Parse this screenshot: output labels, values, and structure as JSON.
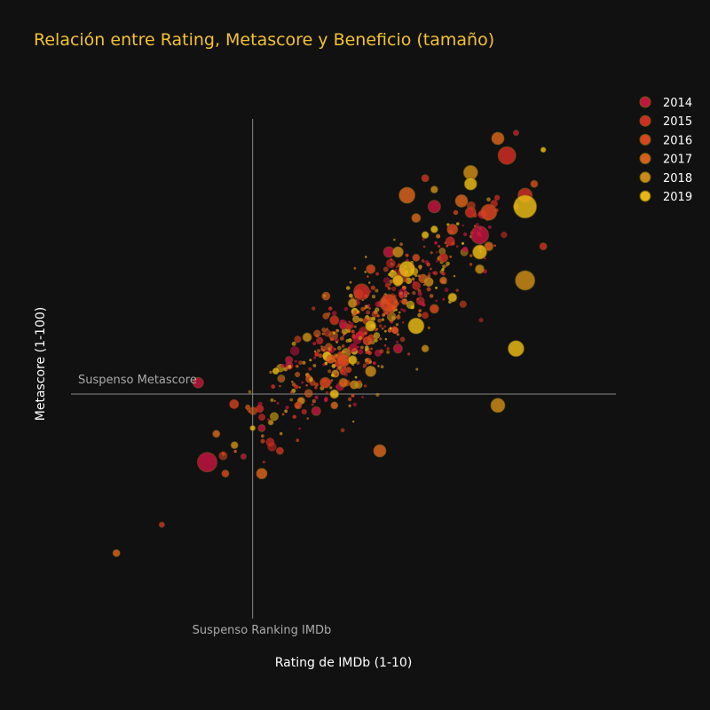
{
  "chart_data": {
    "type": "scatter",
    "title": "Relación entre Rating, Metascore y Beneficio (tamaño)",
    "xlabel": "Rating de IMDb (1-10)",
    "ylabel": "Metascore (1-100)",
    "xlim": [
      3.0,
      9.0
    ],
    "ylim": [
      10,
      100
    ],
    "grid": false,
    "legend_position": "top-right",
    "reference_lines": [
      {
        "axis": "x",
        "value": 5,
        "label": "Suspenso Ranking IMDb"
      },
      {
        "axis": "y",
        "value": 50,
        "label": "Suspenso Metascore"
      }
    ],
    "colors": {
      "background": "#111111",
      "title": "#f2c230",
      "axis_text": "#ffffff",
      "reference_line": "#888888",
      "reference_text": "#aaaaaa"
    },
    "series": [
      {
        "name": "2014",
        "color": "#c2143f",
        "points": [
          [
            4.4,
            52,
            6
          ],
          [
            7.5,
            78,
            10
          ],
          [
            4.5,
            38,
            11
          ],
          [
            7.0,
            83,
            7
          ],
          [
            6.6,
            58,
            5
          ],
          [
            5.4,
            56,
            4
          ],
          [
            5.1,
            44,
            4
          ],
          [
            6.5,
            75,
            6
          ],
          [
            7.9,
            96,
            3
          ],
          [
            6.0,
            62,
            4
          ],
          [
            5.7,
            47,
            5
          ],
          [
            4.9,
            39,
            3
          ]
        ]
      },
      {
        "name": "2015",
        "color": "#cf2c22",
        "points": [
          [
            7.8,
            92,
            10
          ],
          [
            8.0,
            85,
            8
          ],
          [
            6.2,
            68,
            9
          ],
          [
            5.9,
            63,
            5
          ],
          [
            7.4,
            82,
            6
          ],
          [
            6.6,
            70,
            5
          ],
          [
            5.3,
            40,
            4
          ],
          [
            6.9,
            88,
            4
          ],
          [
            4.0,
            27,
            3
          ],
          [
            8.2,
            76,
            4
          ],
          [
            6.0,
            54,
            4
          ],
          [
            7.1,
            74,
            5
          ]
        ]
      },
      {
        "name": "2016",
        "color": "#d9451e",
        "points": [
          [
            6.5,
            66,
            10
          ],
          [
            7.6,
            82,
            9
          ],
          [
            6.0,
            56,
            7
          ],
          [
            7.2,
            79,
            6
          ],
          [
            5.8,
            52,
            6
          ],
          [
            6.3,
            72,
            5
          ],
          [
            4.7,
            36,
            4
          ],
          [
            8.1,
            87,
            4
          ],
          [
            5.5,
            48,
            4
          ],
          [
            7.0,
            65,
            5
          ],
          [
            6.8,
            74,
            4
          ],
          [
            7.9,
            83,
            3
          ]
        ]
      },
      {
        "name": "2017",
        "color": "#d7611c",
        "points": [
          [
            6.7,
            85,
            9
          ],
          [
            7.7,
            95,
            7
          ],
          [
            3.5,
            22,
            4
          ],
          [
            6.0,
            52,
            5
          ],
          [
            5.1,
            36,
            6
          ],
          [
            7.3,
            84,
            7
          ],
          [
            6.4,
            40,
            7
          ],
          [
            6.8,
            81,
            5
          ],
          [
            7.6,
            76,
            5
          ],
          [
            4.6,
            43,
            4
          ],
          [
            5.9,
            48,
            4
          ],
          [
            7.1,
            70,
            4
          ]
        ]
      },
      {
        "name": "2018",
        "color": "#c98a18",
        "points": [
          [
            8.0,
            70,
            11
          ],
          [
            7.7,
            48,
            8
          ],
          [
            6.3,
            54,
            6
          ],
          [
            7.4,
            89,
            8
          ],
          [
            6.6,
            75,
            6
          ],
          [
            5.6,
            60,
            5
          ],
          [
            6.1,
            66,
            5
          ],
          [
            7.0,
            86,
            4
          ],
          [
            4.8,
            41,
            4
          ],
          [
            6.9,
            58,
            4
          ],
          [
            7.5,
            72,
            5
          ],
          [
            5.2,
            45,
            3
          ]
        ]
      },
      {
        "name": "2019",
        "color": "#e6b714",
        "points": [
          [
            8.0,
            83,
            13
          ],
          [
            6.7,
            72,
            9
          ],
          [
            6.8,
            62,
            9
          ],
          [
            7.5,
            75,
            8
          ],
          [
            7.4,
            87,
            7
          ],
          [
            7.9,
            58,
            9
          ],
          [
            6.6,
            70,
            6
          ],
          [
            6.3,
            62,
            6
          ],
          [
            6.1,
            56,
            5
          ],
          [
            7.2,
            67,
            5
          ],
          [
            5.9,
            50,
            5
          ],
          [
            7.0,
            79,
            4
          ],
          [
            6.9,
            78,
            4
          ],
          [
            8.2,
            93,
            3
          ],
          [
            5.0,
            44,
            3
          ]
        ]
      }
    ]
  }
}
